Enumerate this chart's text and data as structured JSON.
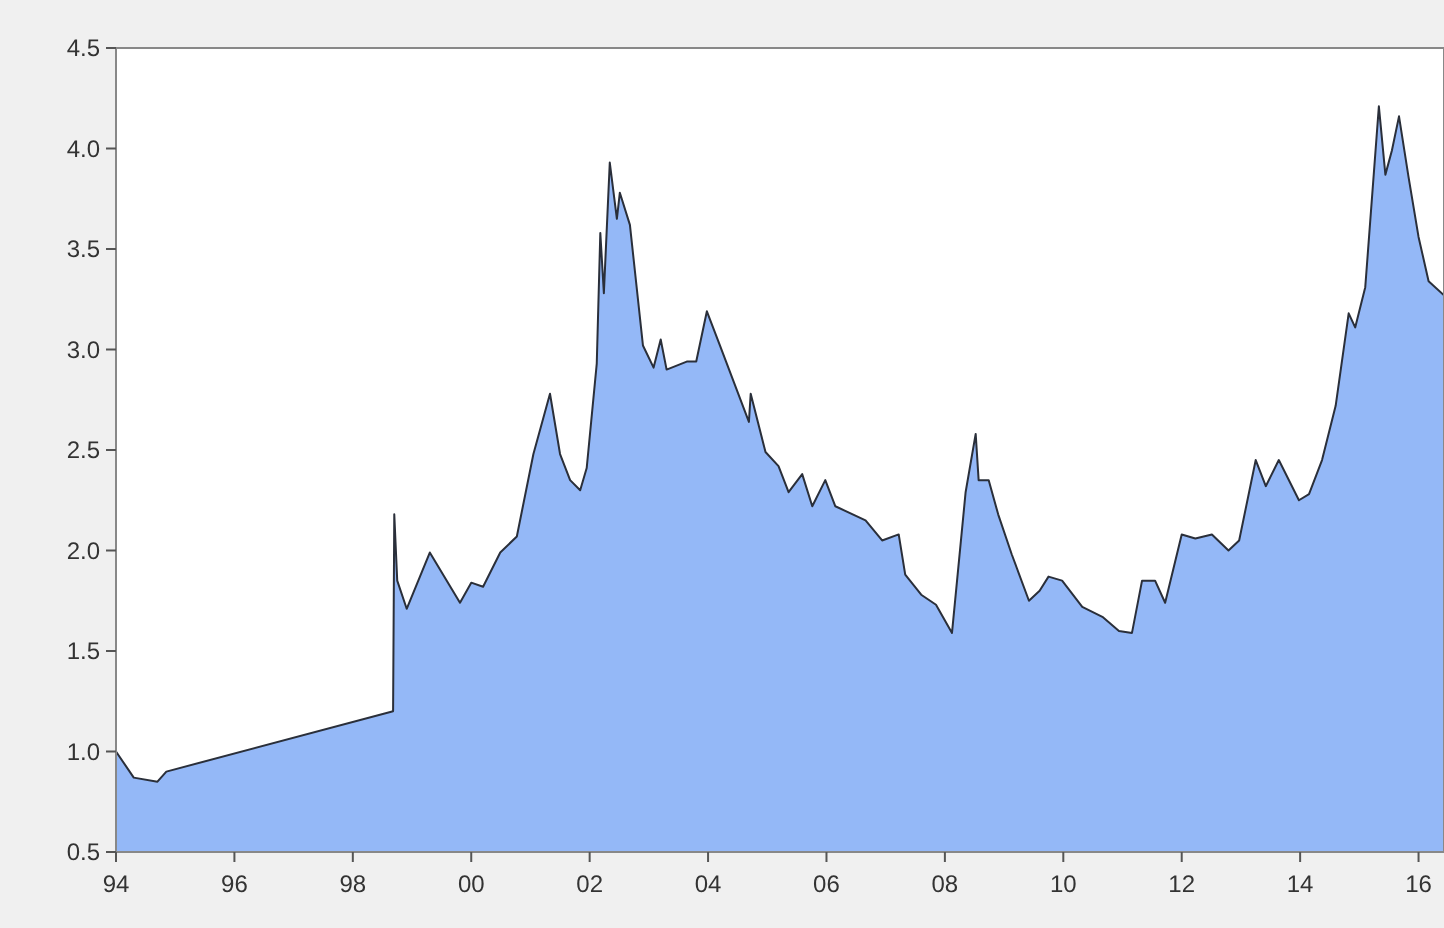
{
  "chart_data": {
    "type": "area",
    "x": [
      1994.0,
      1994.3,
      1994.7,
      1994.85,
      1998.68,
      1998.7,
      1998.75,
      1998.91,
      1999.3,
      1999.81,
      2000.0,
      2000.2,
      2000.49,
      2000.77,
      2001.05,
      2001.33,
      2001.5,
      2001.67,
      2001.84,
      2001.95,
      2002.12,
      2002.18,
      2002.24,
      2002.34,
      2002.46,
      2002.51,
      2002.68,
      2002.9,
      2003.08,
      2003.2,
      2003.3,
      2003.64,
      2003.8,
      2003.98,
      2004.2,
      2004.69,
      2004.72,
      2004.97,
      2005.19,
      2005.36,
      2005.59,
      2005.76,
      2005.98,
      2006.15,
      2006.66,
      2006.94,
      2007.22,
      2007.33,
      2007.6,
      2007.85,
      2008.12,
      2008.35,
      2008.52,
      2008.57,
      2008.74,
      2008.9,
      2009.13,
      2009.42,
      2009.6,
      2009.75,
      2009.98,
      2010.32,
      2010.66,
      2010.94,
      2011.16,
      2011.33,
      2011.55,
      2011.72,
      2012.0,
      2012.23,
      2012.51,
      2012.79,
      2012.97,
      2013.25,
      2013.42,
      2013.64,
      2013.98,
      2014.15,
      2014.37,
      2014.6,
      2014.82,
      2014.93,
      2015.1,
      2015.33,
      2015.44,
      2015.55,
      2015.67,
      2015.83,
      2016.0,
      2016.17,
      2016.43
    ],
    "series": [
      {
        "color": "#94b8f7",
        "values": [
          1.0,
          0.87,
          0.85,
          0.9,
          1.2,
          2.18,
          1.85,
          1.71,
          1.99,
          1.74,
          1.84,
          1.82,
          1.99,
          2.07,
          2.48,
          2.78,
          2.48,
          2.35,
          2.3,
          2.41,
          2.93,
          3.58,
          3.28,
          3.93,
          3.65,
          3.78,
          3.62,
          3.02,
          2.91,
          3.05,
          2.9,
          2.94,
          2.94,
          3.19,
          3.02,
          2.64,
          2.78,
          2.49,
          2.42,
          2.29,
          2.38,
          2.22,
          2.35,
          2.22,
          2.15,
          2.05,
          2.08,
          1.88,
          1.78,
          1.73,
          1.59,
          2.29,
          2.58,
          2.35,
          2.35,
          2.18,
          1.98,
          1.75,
          1.8,
          1.87,
          1.85,
          1.72,
          1.67,
          1.6,
          1.59,
          1.85,
          1.85,
          1.74,
          2.08,
          2.06,
          2.08,
          2.0,
          2.05,
          2.45,
          2.32,
          2.45,
          2.25,
          2.28,
          2.45,
          2.72,
          3.18,
          3.11,
          3.31,
          4.21,
          3.87,
          3.99,
          4.16,
          3.86,
          3.56,
          3.34,
          3.27
        ]
      }
    ],
    "xlim": [
      1994,
      2016.43
    ],
    "xticks": [
      {
        "value": 1994,
        "label": "94"
      },
      {
        "value": 1996,
        "label": "96"
      },
      {
        "value": 1998,
        "label": "98"
      },
      {
        "value": 2000,
        "label": "00"
      },
      {
        "value": 2002,
        "label": "02"
      },
      {
        "value": 2004,
        "label": "04"
      },
      {
        "value": 2006,
        "label": "06"
      },
      {
        "value": 2008,
        "label": "08"
      },
      {
        "value": 2010,
        "label": "10"
      },
      {
        "value": 2012,
        "label": "12"
      },
      {
        "value": 2014,
        "label": "14"
      },
      {
        "value": 2016,
        "label": "16"
      }
    ],
    "ylim": [
      0.5,
      4.5
    ],
    "yticks": [
      {
        "value": 0.5,
        "label": "0.5"
      },
      {
        "value": 1.0,
        "label": "1.0"
      },
      {
        "value": 1.5,
        "label": "1.5"
      },
      {
        "value": 2.0,
        "label": "2.0"
      },
      {
        "value": 2.5,
        "label": "2.5"
      },
      {
        "value": 3.0,
        "label": "3.0"
      },
      {
        "value": 3.5,
        "label": "3.5"
      },
      {
        "value": 4.0,
        "label": "4.0"
      },
      {
        "value": 4.5,
        "label": "4.5"
      }
    ]
  }
}
